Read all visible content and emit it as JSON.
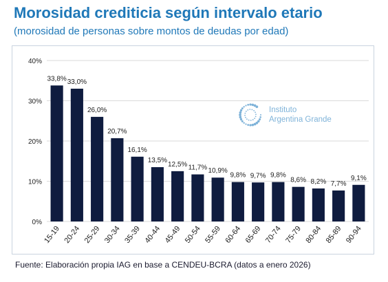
{
  "header": {
    "title": "Morosidad crediticia según intervalo etario",
    "subtitle": "(morosidad de personas sobre montos de deudas por edad)"
  },
  "watermark": {
    "line1": "Instituto",
    "line2": "Argentina Grande",
    "icon": "dotted-circle-logo-icon",
    "color": "#7fb3d9"
  },
  "footer": {
    "source": "Fuente: Elaboración propia IAG en base a CENDEU-BCRA (datos a enero 2026)"
  },
  "colors": {
    "bar": "#0f1c3f",
    "title": "#1f78b8",
    "grid": "#d9d9d9"
  },
  "chart_data": {
    "type": "bar",
    "categories": [
      "15-19",
      "20-24",
      "25-29",
      "30-34",
      "35-39",
      "40-44",
      "45-49",
      "50-54",
      "55-59",
      "60-64",
      "65-69",
      "70-74",
      "75-79",
      "80-84",
      "85-89",
      "90-94"
    ],
    "values": [
      33.8,
      33.0,
      26.0,
      20.7,
      16.1,
      13.5,
      12.5,
      11.7,
      10.9,
      9.8,
      9.7,
      9.8,
      8.6,
      8.2,
      7.7,
      9.1
    ],
    "data_labels": [
      "33,8%",
      "33,0%",
      "26,0%",
      "20,7%",
      "16,1%",
      "13,5%",
      "12,5%",
      "11,7%",
      "10,9%",
      "9,8%",
      "9,7%",
      "9,8%",
      "8,6%",
      "8,2%",
      "7,7%",
      "9,1%"
    ],
    "y_ticks": [
      0,
      10,
      20,
      30,
      40
    ],
    "y_tick_labels": [
      "0%",
      "10%",
      "20%",
      "30%",
      "40%"
    ],
    "ylim": [
      0,
      40
    ],
    "grid": true,
    "legend": "none",
    "title": "",
    "xlabel": "",
    "ylabel": ""
  }
}
